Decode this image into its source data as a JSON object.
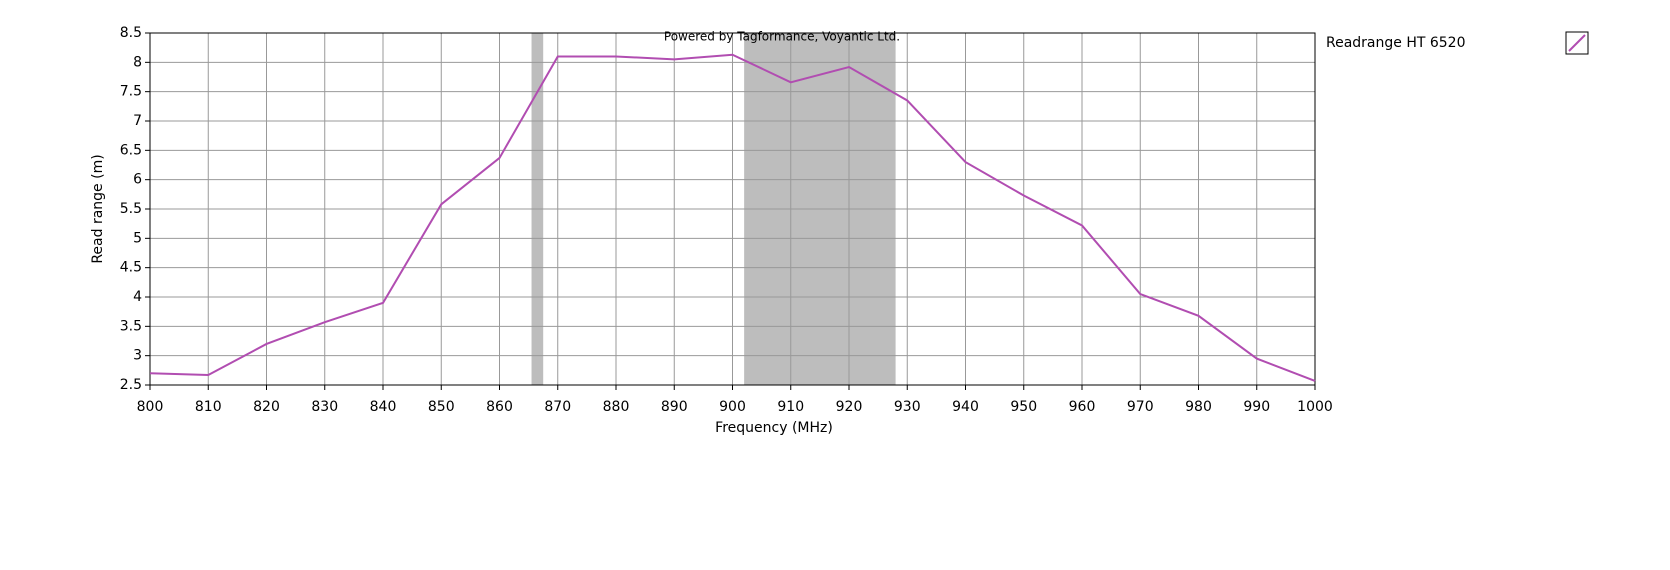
{
  "chart_data": {
    "type": "line",
    "watermark": "Powered by Tagformance, Voyantic Ltd.",
    "x_label": "Frequency (MHz)",
    "y_label": "Read range (m)",
    "x": [
      800,
      810,
      820,
      830,
      840,
      850,
      860,
      870,
      880,
      890,
      900,
      910,
      920,
      930,
      940,
      950,
      960,
      970,
      980,
      990,
      1000
    ],
    "series": [
      {
        "name": "Readrange HT 6520",
        "color": "#b14db1",
        "values": [
          2.7,
          2.67,
          3.2,
          3.57,
          3.9,
          5.58,
          6.37,
          8.1,
          8.1,
          8.05,
          8.13,
          7.66,
          7.92,
          7.35,
          6.3,
          5.73,
          5.22,
          4.05,
          3.68,
          2.95,
          2.57
        ]
      }
    ],
    "bands": [
      [
        865.5,
        867.5
      ],
      [
        902,
        928
      ]
    ],
    "band_color": "#bdbdbd",
    "xlim": [
      800,
      1000
    ],
    "xticks": [
      800,
      810,
      820,
      830,
      840,
      850,
      860,
      870,
      880,
      890,
      900,
      910,
      920,
      930,
      940,
      950,
      960,
      970,
      980,
      990,
      1000
    ],
    "ylim": [
      2.5,
      8.5
    ],
    "yticks": [
      2.5,
      3,
      3.5,
      4,
      4.5,
      5,
      5.5,
      6,
      6.5,
      7,
      7.5,
      8,
      8.5
    ],
    "grid": true,
    "legend": "right"
  }
}
